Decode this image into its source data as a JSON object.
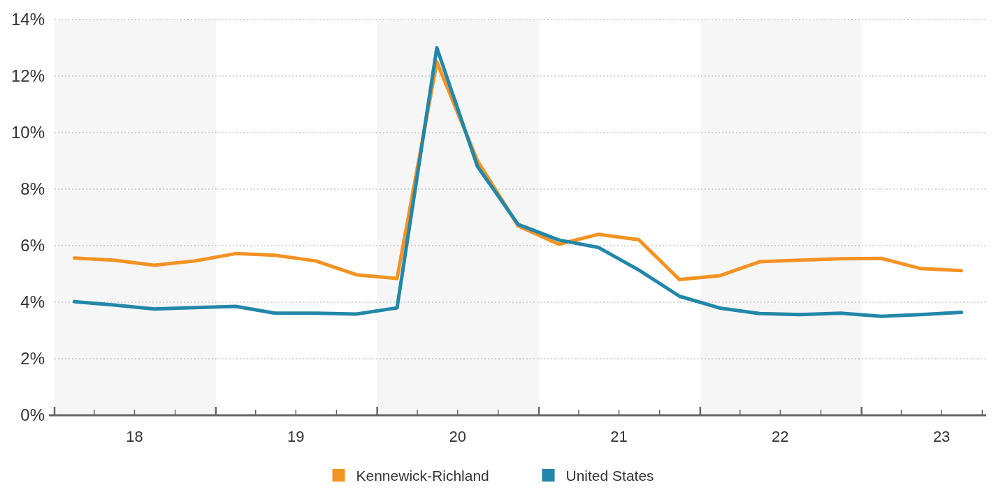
{
  "chart_data": {
    "type": "line",
    "x": [
      "2018-02-15",
      "2018-05-15",
      "2018-08-15",
      "2018-11-15",
      "2019-02-15",
      "2019-05-15",
      "2019-08-15",
      "2019-11-15",
      "2020-02-15",
      "2020-05-15",
      "2020-08-15",
      "2020-11-15",
      "2021-02-15",
      "2021-05-15",
      "2021-08-15",
      "2021-11-15",
      "2022-02-15",
      "2022-05-15",
      "2022-08-15",
      "2022-11-15",
      "2023-02-15",
      "2023-05-15",
      "2023-08-15"
    ],
    "series": [
      {
        "name": "Kennewick-Richland",
        "color": "#f39324",
        "values": [
          5.56,
          5.49,
          5.31,
          5.46,
          5.72,
          5.66,
          5.46,
          4.97,
          4.84,
          12.5,
          9.0,
          6.7,
          6.05,
          6.4,
          6.21,
          4.8,
          4.94,
          5.43,
          5.49,
          5.54,
          5.55,
          5.19,
          5.12
        ]
      },
      {
        "name": "United States",
        "color": "#2287a8",
        "values": [
          4.02,
          3.9,
          3.76,
          3.81,
          3.85,
          3.61,
          3.61,
          3.58,
          3.8,
          13.0,
          8.8,
          6.75,
          6.2,
          5.94,
          5.14,
          4.21,
          3.79,
          3.6,
          3.56,
          3.61,
          3.5,
          3.56,
          3.64
        ]
      }
    ],
    "xlim": [
      "2018-01-01",
      "2023-10-10"
    ],
    "xticks": [
      {
        "value": "2018-01-01",
        "label": null
      },
      {
        "value": "2018-04-01",
        "label": null
      },
      {
        "value": "2018-07-01",
        "label": "18"
      },
      {
        "value": "2018-10-01",
        "label": null
      },
      {
        "value": "2019-01-01",
        "label": null
      },
      {
        "value": "2019-04-01",
        "label": null
      },
      {
        "value": "2019-07-01",
        "label": "19"
      },
      {
        "value": "2019-10-01",
        "label": null
      },
      {
        "value": "2020-01-01",
        "label": null
      },
      {
        "value": "2020-04-01",
        "label": null
      },
      {
        "value": "2020-07-01",
        "label": "20"
      },
      {
        "value": "2020-10-01",
        "label": null
      },
      {
        "value": "2021-01-01",
        "label": null
      },
      {
        "value": "2021-04-01",
        "label": null
      },
      {
        "value": "2021-07-01",
        "label": "21"
      },
      {
        "value": "2021-10-01",
        "label": null
      },
      {
        "value": "2022-01-01",
        "label": null
      },
      {
        "value": "2022-04-01",
        "label": null
      },
      {
        "value": "2022-07-01",
        "label": "22"
      },
      {
        "value": "2022-10-01",
        "label": null
      },
      {
        "value": "2023-01-01",
        "label": null
      },
      {
        "value": "2023-04-01",
        "label": null
      },
      {
        "value": "2023-07-01",
        "label": "23"
      },
      {
        "value": "2023-10-01",
        "label": null
      }
    ],
    "ylim": [
      0,
      14
    ],
    "yticks": [
      {
        "value": 0,
        "label": "0%"
      },
      {
        "value": 2,
        "label": "2%"
      },
      {
        "value": 4,
        "label": "4%"
      },
      {
        "value": 6,
        "label": "6%"
      },
      {
        "value": 8,
        "label": "8%"
      },
      {
        "value": 10,
        "label": "10%"
      },
      {
        "value": 12,
        "label": "12%"
      },
      {
        "value": 14,
        "label": "14%"
      }
    ],
    "bands": [
      {
        "axis": "x",
        "from": "2018-01-01",
        "to": "2019-01-01",
        "color": "#f6f6f6"
      },
      {
        "axis": "x",
        "from": "2020-01-01",
        "to": "2021-01-01",
        "color": "#f6f6f6"
      },
      {
        "axis": "x",
        "from": "2022-01-01",
        "to": "2023-01-01",
        "color": "#f6f6f6"
      }
    ],
    "grid": "y",
    "legend": "bottom",
    "line_style": "solid",
    "marker": "none",
    "tick_labels": "xy"
  }
}
